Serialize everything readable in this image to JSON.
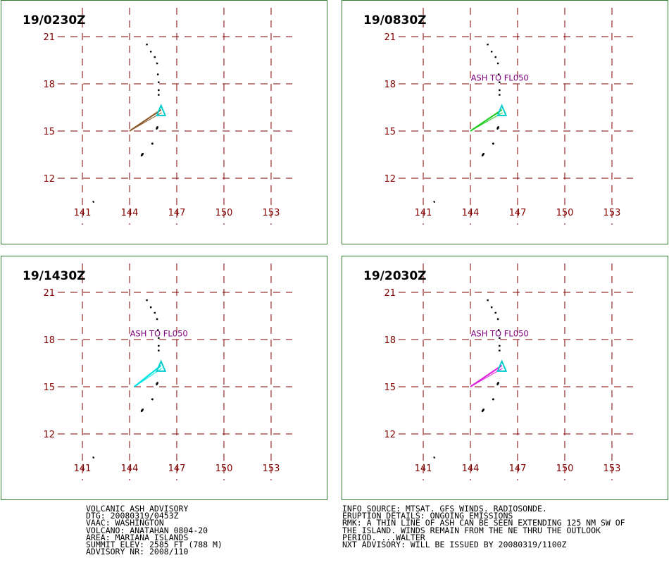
{
  "panels": [
    {
      "time": "19/0230Z",
      "plume_color": "#8b5a2b",
      "label": "",
      "plume_end_lon": 144.0
    },
    {
      "time": "19/0830Z",
      "plume_color": "#22cc22",
      "label": "ASH TO FL050",
      "plume_end_lon": 144.0
    },
    {
      "time": "19/1430Z",
      "plume_color": "#00e5e5",
      "label": "ASH TO FL050",
      "plume_end_lon": 144.3
    },
    {
      "time": "19/2030Z",
      "plume_color": "#dd22dd",
      "label": "ASH TO FL050",
      "plume_end_lon": 144.0
    }
  ],
  "map": {
    "lat_labels": [
      "21",
      "18",
      "15",
      "12"
    ],
    "lon_labels": [
      "141",
      "144",
      "147",
      "150",
      "153"
    ],
    "grid_color": "#800000",
    "volcano_marker_color": "#00cccc",
    "label_color": "#800080"
  },
  "advisory_left": [
    "VOLCANIC ASH ADVISORY",
    "DTG: 20080319/0453Z",
    "VAAC: WASHINGTON",
    "VOLCANO: ANATAHAN 0804-20",
    "AREA: MARIANA ISLANDS",
    "SUMMIT ELEV: 2585 FT (788 M)",
    "ADVISORY NR: 2008/110"
  ],
  "advisory_right": [
    "INFO SOURCE: MTSAT. GFS WINDS. RADIOSONDE.",
    "ERUPTION DETAILS: ONGOING EMISSIONS",
    "RMK: A THIN LINE OF ASH CAN BE SEEN EXTENDING 125 NM SW OF",
    "THE ISLAND. WINDS REMAIN FROM THE NE THRU THE OUTLOOK",
    "PERIOD. ...WALTER",
    "NXT ADVISORY: WILL BE ISSUED BY 20080319/1100Z"
  ]
}
